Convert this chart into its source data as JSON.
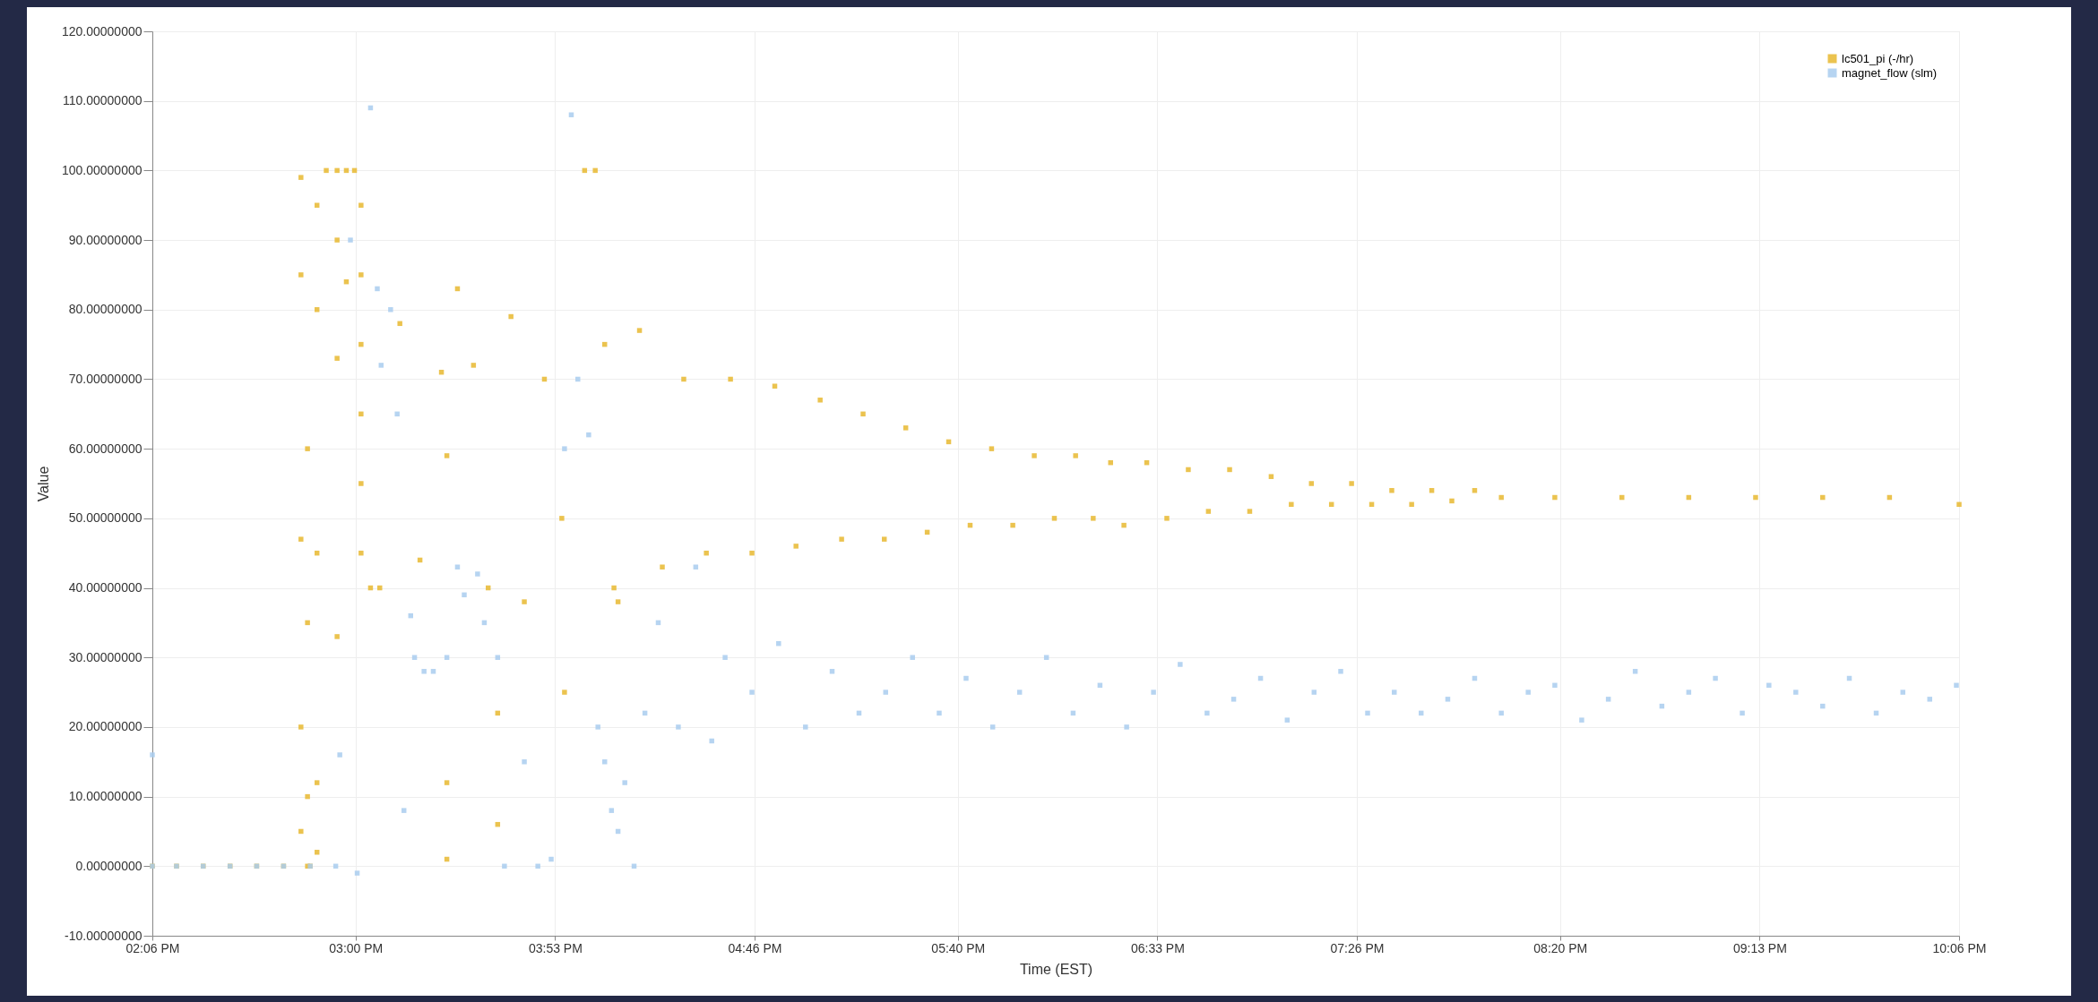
{
  "chart_data": {
    "type": "scatter",
    "xlabel": "Time (EST)",
    "ylabel": "Value",
    "xlim": [
      14.1,
      22.1
    ],
    "xticks": [
      {
        "value": 14.1,
        "label": "02:06 PM"
      },
      {
        "value": 15.0,
        "label": "03:00 PM"
      },
      {
        "value": 15.8833,
        "label": "03:53 PM"
      },
      {
        "value": 16.7667,
        "label": "04:46 PM"
      },
      {
        "value": 17.6667,
        "label": "05:40 PM"
      },
      {
        "value": 18.55,
        "label": "06:33 PM"
      },
      {
        "value": 19.4333,
        "label": "07:26 PM"
      },
      {
        "value": 20.3333,
        "label": "08:20 PM"
      },
      {
        "value": 21.2167,
        "label": "09:13 PM"
      },
      {
        "value": 22.1,
        "label": "10:06 PM"
      }
    ],
    "ylim": [
      -10,
      120
    ],
    "yticks": [
      {
        "value": -10,
        "label": "-10.00000000"
      },
      {
        "value": 0,
        "label": "0.00000000"
      },
      {
        "value": 10,
        "label": "10.00000000"
      },
      {
        "value": 20,
        "label": "20.00000000"
      },
      {
        "value": 30,
        "label": "30.00000000"
      },
      {
        "value": 40,
        "label": "40.00000000"
      },
      {
        "value": 50,
        "label": "50.00000000"
      },
      {
        "value": 60,
        "label": "60.00000000"
      },
      {
        "value": 70,
        "label": "70.00000000"
      },
      {
        "value": 80,
        "label": "80.00000000"
      },
      {
        "value": 90,
        "label": "90.00000000"
      },
      {
        "value": 100,
        "label": "100.00000000"
      },
      {
        "value": 110,
        "label": "110.00000000"
      },
      {
        "value": 120,
        "label": "120.00000000"
      }
    ],
    "grid": true,
    "legend": "top right",
    "marker": "square",
    "series": [
      {
        "name": "lc501_pi (-/hr)",
        "color": "#e8b830",
        "x": [
          14.1,
          14.207,
          14.325,
          14.444,
          14.562,
          14.681,
          14.799,
          14.758,
          14.758,
          14.758,
          14.758,
          14.758,
          14.787,
          14.787,
          14.787,
          14.787,
          14.829,
          14.829,
          14.829,
          14.829,
          14.829,
          14.87,
          14.918,
          14.918,
          14.918,
          14.918,
          14.959,
          14.959,
          14.995,
          15.024,
          15.024,
          15.024,
          15.024,
          15.024,
          15.024,
          15.066,
          15.107,
          15.196,
          15.285,
          15.38,
          15.404,
          15.404,
          15.404,
          15.451,
          15.522,
          15.587,
          15.629,
          15.629,
          15.688,
          15.747,
          15.836,
          15.913,
          15.925,
          16.014,
          16.061,
          16.103,
          16.144,
          16.162,
          16.257,
          16.358,
          16.453,
          16.553,
          16.66,
          16.755,
          16.856,
          16.95,
          17.057,
          17.152,
          17.247,
          17.341,
          17.436,
          17.531,
          17.626,
          17.721,
          17.816,
          17.91,
          18.005,
          18.094,
          18.188,
          18.266,
          18.343,
          18.402,
          18.503,
          18.592,
          18.687,
          18.776,
          18.87,
          18.959,
          19.054,
          19.143,
          19.232,
          19.321,
          19.41,
          19.499,
          19.588,
          19.676,
          19.765,
          19.854,
          19.955,
          20.073,
          20.31,
          20.607,
          20.903,
          21.199,
          21.496,
          21.792,
          22.1
        ],
        "values": [
          0,
          0,
          0,
          0,
          0,
          0,
          0,
          5,
          20,
          47,
          85,
          99,
          10,
          0,
          35,
          60,
          2,
          12,
          45,
          80,
          95,
          100,
          100,
          90,
          33,
          73,
          100,
          84,
          100,
          95,
          85,
          75,
          65,
          55,
          45,
          40,
          40,
          78,
          44,
          71,
          59,
          12,
          1,
          83,
          72,
          40,
          6,
          22,
          79,
          38,
          70,
          50,
          25,
          100,
          100,
          75,
          40,
          38,
          77,
          43,
          70,
          45,
          70,
          45,
          69,
          46,
          67,
          47,
          65,
          47,
          63,
          48,
          61,
          49,
          60,
          49,
          59,
          50,
          59,
          50,
          58,
          49,
          58,
          50,
          57,
          51,
          57,
          51,
          56,
          52,
          55,
          52,
          55,
          52,
          54,
          52,
          54,
          52.5,
          54,
          53,
          53,
          53,
          53,
          53,
          53,
          53,
          52
        ]
      },
      {
        "name": "magnet_flow (slm)",
        "color": "#a9cdef",
        "x": [
          14.1,
          14.1,
          14.207,
          14.325,
          14.444,
          14.562,
          14.681,
          14.799,
          14.912,
          14.93,
          14.977,
          15.007,
          15.066,
          15.096,
          15.113,
          15.155,
          15.184,
          15.214,
          15.244,
          15.261,
          15.303,
          15.344,
          15.404,
          15.451,
          15.481,
          15.54,
          15.57,
          15.629,
          15.659,
          15.747,
          15.807,
          15.866,
          15.925,
          15.955,
          15.984,
          16.032,
          16.073,
          16.103,
          16.133,
          16.162,
          16.192,
          16.233,
          16.281,
          16.34,
          16.429,
          16.506,
          16.577,
          16.636,
          16.755,
          16.873,
          16.992,
          17.11,
          17.229,
          17.347,
          17.466,
          17.584,
          17.703,
          17.821,
          17.94,
          18.059,
          18.177,
          18.296,
          18.414,
          18.533,
          18.651,
          18.77,
          18.888,
          19.007,
          19.125,
          19.244,
          19.362,
          19.481,
          19.599,
          19.718,
          19.836,
          19.955,
          20.073,
          20.192,
          20.31,
          20.429,
          20.547,
          20.666,
          20.784,
          20.903,
          21.021,
          21.14,
          21.258,
          21.377,
          21.496,
          21.614,
          21.733,
          21.851,
          21.97,
          22.088
        ],
        "values": [
          0,
          16,
          0,
          0,
          0,
          0,
          0,
          0,
          0,
          16,
          90,
          -1,
          109,
          83,
          72,
          80,
          65,
          8,
          36,
          30,
          28,
          28,
          30,
          43,
          39,
          42,
          35,
          30,
          0,
          15,
          0,
          1,
          60,
          108,
          70,
          62,
          20,
          15,
          8,
          5,
          12,
          0,
          22,
          35,
          20,
          43,
          18,
          30,
          25,
          32,
          20,
          28,
          22,
          25,
          30,
          22,
          27,
          20,
          25,
          30,
          22,
          26,
          20,
          25,
          29,
          22,
          24,
          27,
          21,
          25,
          28,
          22,
          25,
          22,
          24,
          27,
          22,
          25,
          26,
          21,
          24,
          28,
          23,
          25,
          27,
          22,
          26,
          25,
          23,
          27,
          22,
          25,
          24,
          26
        ]
      }
    ]
  }
}
